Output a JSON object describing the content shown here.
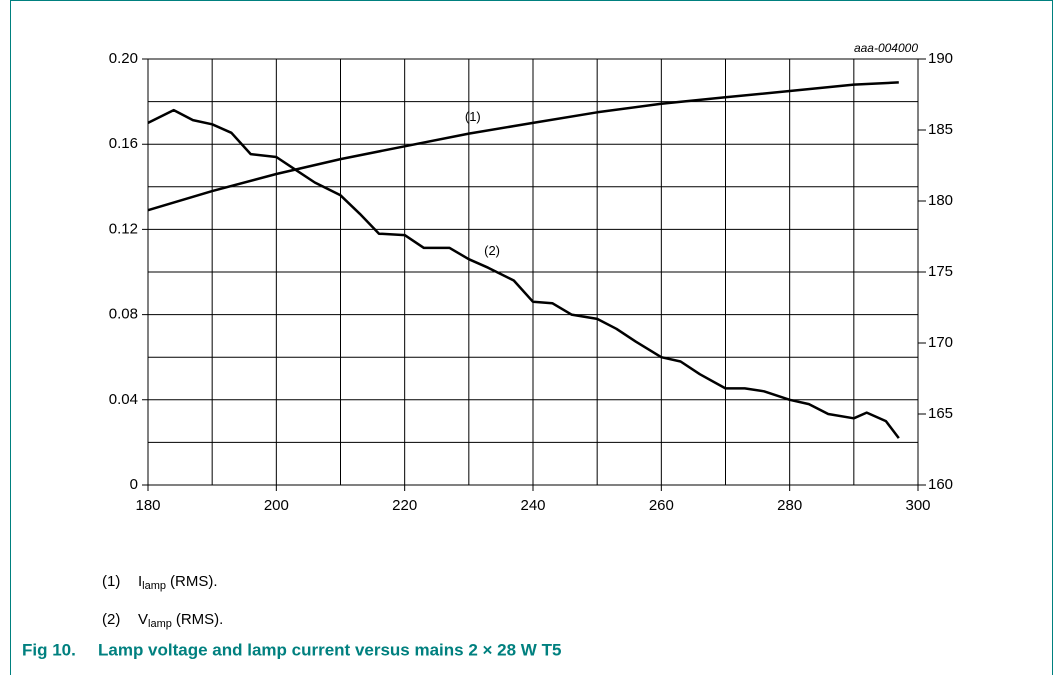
{
  "chart_data": {
    "type": "line",
    "code": "aaa-004000",
    "xlim": [
      180,
      300
    ],
    "xticks": [
      180,
      200,
      220,
      240,
      260,
      280,
      300
    ],
    "ylim": [
      0,
      0.2
    ],
    "yticks": [
      0,
      0.04,
      0.08,
      0.12,
      0.16,
      {
        "value": 0.2,
        "label": "0.20"
      }
    ],
    "y2lim": [
      160,
      190
    ],
    "y2ticks": [
      160,
      165,
      170,
      175,
      180,
      185,
      190
    ],
    "grid": true,
    "series": [
      {
        "name": "(1)",
        "color": "#000000",
        "x": [
          180,
          190,
          200,
          210,
          220,
          230,
          240,
          250,
          260,
          270,
          280,
          290,
          297
        ],
        "values": [
          0.129,
          0.138,
          0.146,
          0.153,
          0.159,
          0.165,
          0.17,
          0.175,
          0.179,
          0.182,
          0.185,
          0.188,
          0.189
        ]
      },
      {
        "name": "(2)",
        "color": "#000000",
        "axis": "y2",
        "x": [
          180,
          184,
          187,
          190,
          193,
          196,
          200,
          203,
          206,
          210,
          213,
          216,
          220,
          223,
          227,
          230,
          233,
          237,
          240,
          243,
          246,
          250,
          253,
          256,
          260,
          263,
          266,
          270,
          273,
          276,
          280,
          283,
          286,
          290,
          292,
          295,
          297
        ],
        "values": [
          185.5,
          186.4,
          185.7,
          185.4,
          184.8,
          183.3,
          183.1,
          182.2,
          181.3,
          180.4,
          179.1,
          177.7,
          177.6,
          176.7,
          176.7,
          175.9,
          175.3,
          174.4,
          172.9,
          172.8,
          172.0,
          171.7,
          171.0,
          170.1,
          169.0,
          168.7,
          167.8,
          166.8,
          166.8,
          166.6,
          166.0,
          165.7,
          165.0,
          164.7,
          165.1,
          164.5,
          163.3
        ]
      }
    ],
    "legend": [
      {
        "marker": "(1)",
        "symbol": "I",
        "sub": "lamp",
        "text": "(RMS)."
      },
      {
        "marker": "(2)",
        "symbol": "V",
        "sub": "lamp",
        "text": "(RMS)."
      }
    ],
    "caption": {
      "number": "Fig 10.",
      "text": "Lamp voltage and lamp current versus mains 2 × 28 W T5"
    }
  }
}
